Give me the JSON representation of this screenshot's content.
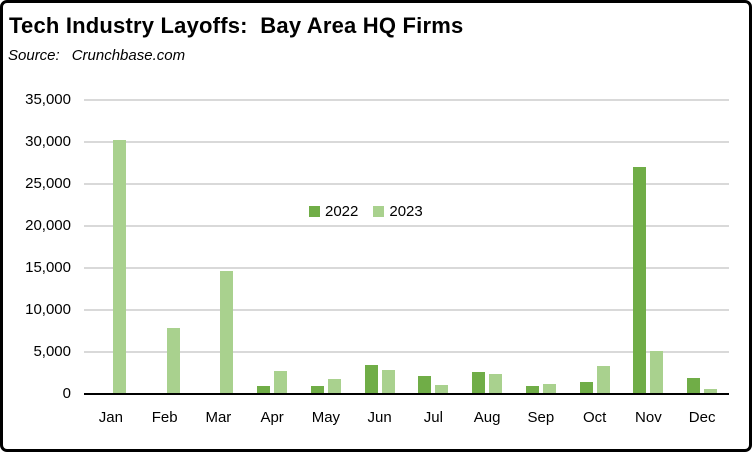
{
  "window": {
    "title": "Tech Industry Layoffs:  Bay Area HQ Firms"
  },
  "header": {
    "title": "Tech Industry Layoffs:  Bay Area HQ Firms",
    "source_label": "Source:",
    "source_value": "Crunchbase.com"
  },
  "colors": {
    "series_2022": "#70AD47",
    "series_2023": "#A9D18E",
    "gridline": "#D9D9D9",
    "axis": "#000000",
    "text": "#000000",
    "background": "#FFFFFF",
    "border": "#000000"
  },
  "chart_data": {
    "type": "bar",
    "title": "Tech Industry Layoffs:  Bay Area HQ Firms",
    "subtitle": "Source:  Crunchbase.com",
    "categories": [
      "Jan",
      "Feb",
      "Mar",
      "Apr",
      "May",
      "Jun",
      "Jul",
      "Aug",
      "Sep",
      "Oct",
      "Nov",
      "Dec"
    ],
    "series": [
      {
        "name": "2022",
        "color": "#70AD47",
        "values": [
          0,
          0,
          0,
          1000,
          900,
          3500,
          2100,
          2600,
          1000,
          1400,
          27000,
          1900
        ]
      },
      {
        "name": "2023",
        "color": "#A9D18E",
        "values": [
          30200,
          7800,
          14700,
          2700,
          1800,
          2900,
          1100,
          2400,
          1200,
          3300,
          5100,
          600
        ]
      }
    ],
    "xlabel": "",
    "ylabel": "",
    "ylim": [
      0,
      35000
    ],
    "ytick_step": 5000,
    "ytick_labels": [
      "0",
      "5,000",
      "10,000",
      "15,000",
      "20,000",
      "25,000",
      "30,000",
      "35,000"
    ],
    "grid": true,
    "legend_position": "inside-upper-center"
  }
}
